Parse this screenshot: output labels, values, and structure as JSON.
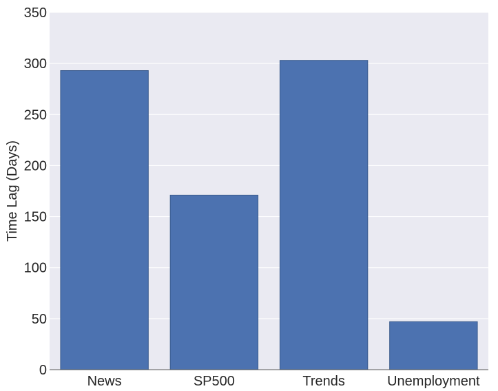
{
  "chart_data": {
    "type": "bar",
    "categories": [
      "News",
      "SP500",
      "Trends",
      "Unemployment"
    ],
    "values": [
      293,
      171,
      303,
      47
    ],
    "title": "",
    "xlabel": "",
    "ylabel": "Time Lag (Days)",
    "ylim": [
      0,
      350
    ],
    "yticks": [
      0,
      50,
      100,
      150,
      200,
      250,
      300,
      350
    ],
    "grid": true,
    "colors": {
      "background": "#EAEAF2",
      "bar": "#4C72B0",
      "bar_edge": "#3A5A8C",
      "grid": "#FFFFFF",
      "text": "#262626"
    }
  }
}
